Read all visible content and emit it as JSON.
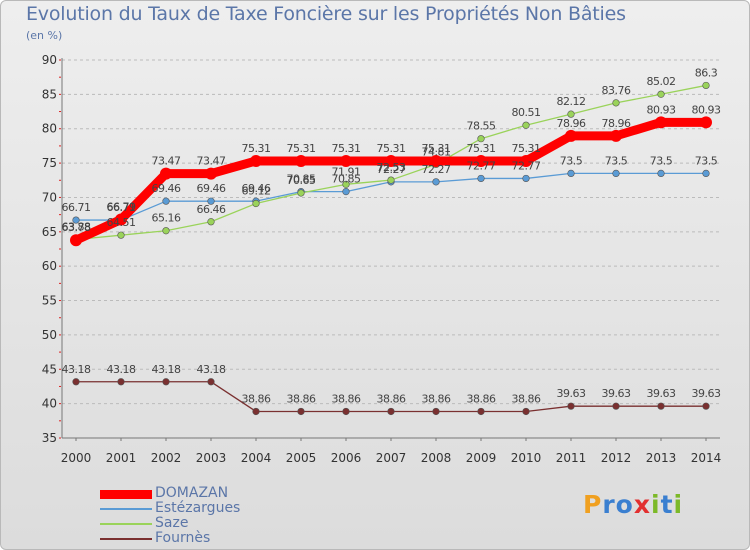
{
  "header": {
    "title": "Evolution du Taux de Taxe Foncière sur les Propriétés Non Bâties",
    "subtitle": "(en %)"
  },
  "brand": {
    "text": "Proxiti",
    "letters": [
      {
        "ch": "P",
        "color": "#f0a020"
      },
      {
        "ch": "r",
        "color": "#3a7fd0"
      },
      {
        "ch": "o",
        "color": "#3a7fd0"
      },
      {
        "ch": "x",
        "color": "#e23030"
      },
      {
        "ch": "i",
        "color": "#7cb928"
      },
      {
        "ch": "t",
        "color": "#3a7fd0"
      },
      {
        "ch": "i",
        "color": "#7cb928"
      }
    ]
  },
  "chart_data": {
    "type": "line",
    "title": "Evolution du Taux de Taxe Foncière sur les Propriétés Non Bâties",
    "ylabel": "(en %)",
    "xlabel": "",
    "x": [
      2000,
      2001,
      2002,
      2003,
      2004,
      2005,
      2006,
      2007,
      2008,
      2009,
      2010,
      2011,
      2012,
      2013,
      2014
    ],
    "ylim": [
      35,
      90
    ],
    "yticks": [
      35,
      40,
      45,
      50,
      55,
      60,
      65,
      70,
      75,
      80,
      85,
      90
    ],
    "grid": "horizontal dashed",
    "legend_position": "bottom-left",
    "series": [
      {
        "name": "DOMAZAN",
        "color": "#ff0000",
        "values": [
          63.78,
          66.79,
          73.47,
          73.47,
          75.31,
          75.31,
          75.31,
          75.31,
          75.31,
          75.31,
          75.31,
          78.96,
          78.96,
          80.93,
          80.93
        ],
        "labels": [
          "63.78",
          "66.79",
          "73.47",
          "73.47",
          "75.31",
          "75.31",
          "75.31",
          "75.31",
          "75.31",
          "75.31",
          "75.31",
          "78.96",
          "78.96",
          "80.93",
          "80.93"
        ]
      },
      {
        "name": "Estézargues",
        "color": "#5a9bd5",
        "values": [
          66.71,
          66.71,
          69.46,
          69.46,
          69.46,
          70.85,
          70.85,
          72.27,
          72.27,
          72.77,
          72.77,
          73.5,
          73.5,
          73.5,
          73.5
        ],
        "labels": [
          "66.71",
          "66.71",
          "69.46",
          "69.46",
          "69.46",
          "70.85",
          "70.85",
          "72.27",
          "72.27",
          "72.77",
          "72.77",
          "73.5",
          "73.5",
          "73.5",
          "73.5"
        ]
      },
      {
        "name": "Saze",
        "color": "#9ad35a",
        "values": [
          63.88,
          64.51,
          65.16,
          66.46,
          69.12,
          70.65,
          71.91,
          72.53,
          74.81,
          78.55,
          80.51,
          82.12,
          83.76,
          85.02,
          86.3
        ],
        "labels": [
          "63.88",
          "64.51",
          "65.16",
          "66.46",
          "69.12",
          "70.65",
          "71.91",
          "72.53",
          "74.81",
          "78.55",
          "80.51",
          "82.12",
          "83.76",
          "85.02",
          "86.3"
        ]
      },
      {
        "name": "Fournès",
        "color": "#7a3030",
        "values": [
          43.18,
          43.18,
          43.18,
          43.18,
          38.86,
          38.86,
          38.86,
          38.86,
          38.86,
          38.86,
          38.86,
          39.63,
          39.63,
          39.63,
          39.63
        ],
        "labels": [
          "43.18",
          "43.18",
          "43.18",
          "43.18",
          "38.86",
          "38.86",
          "38.86",
          "38.86",
          "38.86",
          "38.86",
          "38.86",
          "39.63",
          "39.63",
          "39.63",
          "39.63"
        ]
      }
    ]
  }
}
